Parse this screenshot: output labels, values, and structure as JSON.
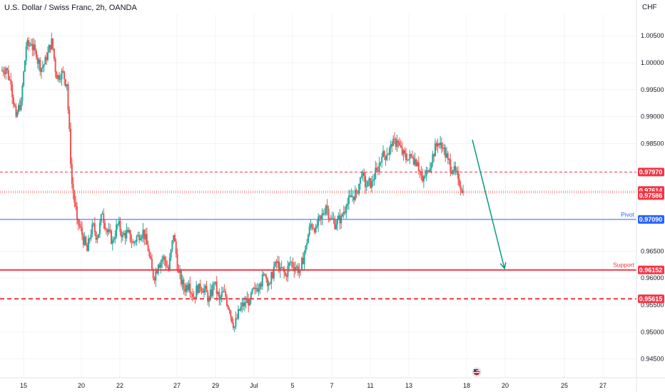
{
  "header": {
    "symbol_title": "U.S. Dollar / Swiss Franc, 2h, OANDA",
    "currency": "CHF"
  },
  "colors": {
    "up": "#26a69a",
    "down": "#ef5350",
    "support": "#f23645",
    "pivot": "#2962ff",
    "arrow": "#089981",
    "grid": "#f0f3fa",
    "axis_text": "#131722"
  },
  "chart_data": {
    "type": "candlestick",
    "title": "U.S. Dollar / Swiss Franc, 2h, OANDA",
    "ylim": [
      0.9415,
      1.009
    ],
    "y_ticks": [
      1.005,
      1.0,
      0.995,
      0.99,
      0.985,
      0.965,
      0.96,
      0.955,
      0.95,
      0.945
    ],
    "y_tick_labels": [
      "1.00500",
      "1.00000",
      "0.99500",
      "0.99000",
      "0.98500",
      "0.96500",
      "0.96000",
      "0.95500",
      "0.95000",
      "0.94500"
    ],
    "x_ticks": [
      "15",
      "20",
      "22",
      "27",
      "29",
      "Jul",
      "5",
      "7",
      "11",
      "13",
      "18",
      "20",
      "25",
      "27"
    ],
    "horizontal_lines": [
      {
        "value": 0.9797,
        "label": "0.97970",
        "style": "dashed",
        "role": "resistance"
      },
      {
        "value": 0.97614,
        "label": "0.97614",
        "style": "dotted",
        "role": "last-price"
      },
      {
        "value": 0.97586,
        "label": "0.97586",
        "style": "dotted",
        "role": "current-price"
      },
      {
        "value": 0.9709,
        "label": "0.97090",
        "style": "solid",
        "name": "Pivot"
      },
      {
        "value": 0.96152,
        "label": "0.96152",
        "style": "solid",
        "name": "Support"
      },
      {
        "value": 0.95615,
        "label": "0.95615",
        "style": "dashed",
        "role": "lower-level"
      }
    ],
    "projection_arrow": {
      "from_price": 0.9857,
      "to_price": 0.9618
    },
    "price_path": [
      0.9985,
      0.999,
      0.996,
      0.99,
      0.993,
      1.003,
      1.0035,
      1.001,
      0.999,
      1.0005,
      1.0045,
      0.997,
      0.9985,
      0.996,
      0.9775,
      0.971,
      0.968,
      0.965,
      0.97,
      0.9675,
      0.972,
      0.9685,
      0.967,
      0.97,
      0.968,
      0.9685,
      0.9665,
      0.968,
      0.969,
      0.965,
      0.96,
      0.9625,
      0.964,
      0.9615,
      0.968,
      0.961,
      0.958,
      0.959,
      0.9565,
      0.959,
      0.958,
      0.956,
      0.959,
      0.956,
      0.9575,
      0.954,
      0.951,
      0.954,
      0.9555,
      0.956,
      0.958,
      0.959,
      0.9605,
      0.959,
      0.963,
      0.962,
      0.9605,
      0.963,
      0.962,
      0.9615,
      0.966,
      0.97,
      0.9695,
      0.971,
      0.9735,
      0.971,
      0.97,
      0.9715,
      0.9735,
      0.975,
      0.976,
      0.979,
      0.977,
      0.978,
      0.98,
      0.9825,
      0.983,
      0.9845,
      0.9855,
      0.983,
      0.982,
      0.9825,
      0.9815,
      0.978,
      0.98,
      0.983,
      0.985,
      0.984,
      0.982,
      0.98,
      0.9785,
      0.9762
    ]
  },
  "y_axis_labels": {
    "resistance": "0.97970",
    "last_price": "0.97614",
    "current_price": "0.97586",
    "pivot": "0.97090",
    "support": "0.96152",
    "lower": "0.95615"
  },
  "line_notes": {
    "pivot": "Pivot",
    "support": "Support"
  },
  "icons": {
    "event_flag": "us-flag-icon"
  }
}
